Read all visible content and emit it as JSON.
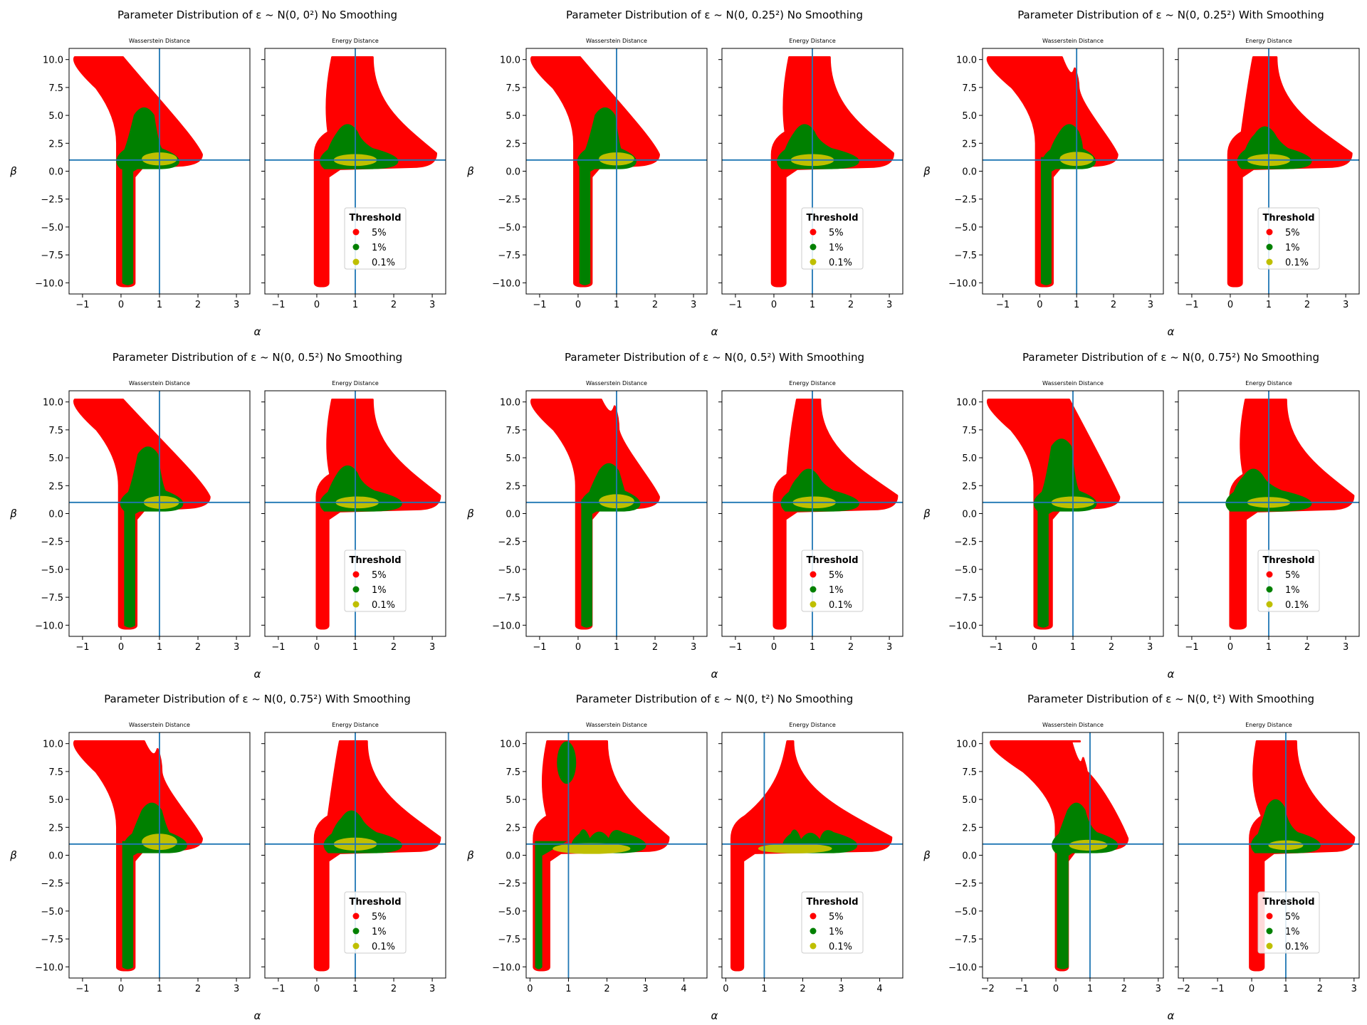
{
  "figure": {
    "legend": {
      "title": "Threshold",
      "entries": [
        {
          "label": "5%",
          "color": "#ff0000"
        },
        {
          "label": "1%",
          "color": "#008000"
        },
        {
          "label": "0.1%",
          "color": "#bfbf00"
        }
      ]
    },
    "colors": {
      "ref_line": "#1f77b4",
      "axes": "#000000"
    }
  },
  "chart_data": [
    {
      "type": "scatter",
      "title_main": "Parameter Distribution of ε ~ N(0, 0²) No Smoothing",
      "panels": [
        {
          "subtitle": "Wasserstein Distance",
          "shape": "L",
          "xlim": [
            -1.35,
            3.35
          ],
          "xticks": [
            -1,
            0,
            1,
            2,
            3
          ],
          "ref": {
            "x": 1,
            "y": 1
          },
          "red": {
            "tlx": -1.2,
            "trx": 0.05,
            "ty": 10.2,
            "b": 2.1,
            "stem": [
              -0.1,
              0.35
            ]
          },
          "green": {
            "peak": [
              0.6,
              6
            ],
            "r": 1.5,
            "stem": [
              0.05,
              0.3
            ]
          },
          "yellow": {
            "c": [
              1.0,
              1.1
            ],
            "rx": 0.45,
            "ry": 0.55
          }
        },
        {
          "subtitle": "Energy Distance",
          "shape": "E",
          "xlim": [
            -1.35,
            3.35
          ],
          "xticks": [
            -1,
            0,
            1,
            2,
            3
          ],
          "ref": {
            "x": 1,
            "y": 1
          },
          "red": {
            "tl": 0.4,
            "tr": 1.45,
            "r": 3.1,
            "stem": [
              -0.05,
              0.3
            ]
          },
          "green": {
            "peak": [
              0.8,
              4.5
            ],
            "r": 2.1
          },
          "yellow": {
            "c": [
              1.0,
              1.0
            ],
            "rx": 0.55,
            "ry": 0.5
          }
        }
      ]
    },
    {
      "type": "scatter",
      "title_main": "Parameter Distribution of ε ~ N(0, 0.25²) No Smoothing",
      "panels": [
        {
          "subtitle": "Wasserstein Distance",
          "shape": "L",
          "xlim": [
            -1.35,
            3.35
          ],
          "xticks": [
            -1,
            0,
            1,
            2,
            3
          ],
          "ref": {
            "x": 1,
            "y": 1
          },
          "red": {
            "tlx": -1.2,
            "trx": 0.05,
            "ty": 10.2,
            "b": 2.1,
            "stem": [
              -0.1,
              0.35
            ]
          },
          "green": {
            "peak": [
              0.7,
              6
            ],
            "r": 1.5,
            "stem": [
              0.05,
              0.3
            ]
          },
          "yellow": {
            "c": [
              1.0,
              1.1
            ],
            "rx": 0.45,
            "ry": 0.55
          }
        },
        {
          "subtitle": "Energy Distance",
          "shape": "E",
          "xlim": [
            -1.35,
            3.35
          ],
          "xticks": [
            -1,
            0,
            1,
            2,
            3
          ],
          "ref": {
            "x": 1,
            "y": 1
          },
          "red": {
            "tl": 0.4,
            "tr": 1.45,
            "r": 3.1,
            "stem": [
              -0.05,
              0.3
            ]
          },
          "green": {
            "peak": [
              0.8,
              4.5
            ],
            "r": 2.2
          },
          "yellow": {
            "c": [
              1.0,
              1.0
            ],
            "rx": 0.55,
            "ry": 0.5
          }
        }
      ]
    },
    {
      "type": "scatter",
      "title_main": "Parameter Distribution of ε ~ N(0, 0.25²) With Smoothing",
      "panels": [
        {
          "subtitle": "Wasserstein Distance",
          "shape": "L",
          "xlim": [
            -1.55,
            3.35
          ],
          "xticks": [
            -1,
            0,
            1,
            2,
            3
          ],
          "ref": {
            "x": 1,
            "y": 1
          },
          "red": {
            "tlx": -1.4,
            "trx": 0.05,
            "ty": 10.2,
            "b": 2.1,
            "stem": [
              -0.1,
              0.35
            ],
            "bump": [
              0.95,
              9.2
            ]
          },
          "green": {
            "peak": [
              0.8,
              4.5
            ],
            "r": 1.5,
            "stem": [
              0.05,
              0.3
            ]
          },
          "yellow": {
            "c": [
              1.0,
              1.1
            ],
            "rx": 0.45,
            "ry": 0.6
          }
        },
        {
          "subtitle": "Energy Distance",
          "shape": "E",
          "xlim": [
            -1.35,
            3.35
          ],
          "xticks": [
            -1,
            0,
            1,
            2,
            3
          ],
          "ref": {
            "x": 1,
            "y": 1
          },
          "red": {
            "tl": 0.6,
            "tr": 1.2,
            "r": 3.15,
            "stem": [
              -0.05,
              0.3
            ]
          },
          "green": {
            "peak": [
              0.9,
              4.3
            ],
            "r": 2.1
          },
          "yellow": {
            "c": [
              1.0,
              1.0
            ],
            "rx": 0.55,
            "ry": 0.5
          }
        }
      ]
    },
    {
      "type": "scatter",
      "title_main": "Parameter Distribution of ε ~ N(0, 0.5²) No Smoothing",
      "panels": [
        {
          "subtitle": "Wasserstein Distance",
          "shape": "L",
          "xlim": [
            -1.35,
            3.35
          ],
          "xticks": [
            -1,
            0,
            1,
            2,
            3
          ],
          "ref": {
            "x": 1,
            "y": 1
          },
          "red": {
            "tlx": -1.2,
            "trx": 0.05,
            "ty": 10.2,
            "b": 2.3,
            "stem": [
              -0.05,
              0.4
            ]
          },
          "green": {
            "peak": [
              0.7,
              6.3
            ],
            "r": 1.6,
            "stem": [
              0.1,
              0.35
            ]
          },
          "yellow": {
            "c": [
              1.05,
              1.0
            ],
            "rx": 0.45,
            "ry": 0.55
          }
        },
        {
          "subtitle": "Energy Distance",
          "shape": "E",
          "xlim": [
            -1.35,
            3.35
          ],
          "xticks": [
            -1,
            0,
            1,
            2,
            3
          ],
          "ref": {
            "x": 1,
            "y": 1
          },
          "red": {
            "tl": 0.4,
            "tr": 1.45,
            "r": 3.2,
            "stem": [
              0.0,
              0.3
            ]
          },
          "green": {
            "peak": [
              0.8,
              4.6
            ],
            "r": 2.2
          },
          "yellow": {
            "c": [
              1.05,
              1.0
            ],
            "rx": 0.55,
            "ry": 0.5
          }
        }
      ]
    },
    {
      "type": "scatter",
      "title_main": "Parameter Distribution of ε ~ N(0, 0.5²) With Smoothing",
      "panels": [
        {
          "subtitle": "Wasserstein Distance",
          "shape": "L",
          "xlim": [
            -1.35,
            3.35
          ],
          "xticks": [
            -1,
            0,
            1,
            2,
            3
          ],
          "ref": {
            "x": 1,
            "y": 1
          },
          "red": {
            "tlx": -1.2,
            "trx": 0.2,
            "ty": 10.2,
            "b": 2.1,
            "stem": [
              -0.05,
              0.35
            ],
            "bump": [
              0.95,
              9.6
            ]
          },
          "green": {
            "peak": [
              0.8,
              4.8
            ],
            "r": 1.6,
            "stem": [
              0.1,
              0.35
            ]
          },
          "yellow": {
            "c": [
              1.0,
              1.1
            ],
            "rx": 0.45,
            "ry": 0.6
          }
        },
        {
          "subtitle": "Energy Distance",
          "shape": "E",
          "xlim": [
            -1.35,
            3.35
          ],
          "xticks": [
            -1,
            0,
            1,
            2,
            3
          ],
          "ref": {
            "x": 1,
            "y": 1
          },
          "red": {
            "tl": 0.6,
            "tr": 1.2,
            "r": 3.2,
            "stem": [
              0.0,
              0.3
            ]
          },
          "green": {
            "peak": [
              0.9,
              4.3
            ],
            "r": 2.2
          },
          "yellow": {
            "c": [
              1.05,
              1.0
            ],
            "rx": 0.55,
            "ry": 0.5
          }
        }
      ]
    },
    {
      "type": "scatter",
      "title_main": "Parameter Distribution of ε ~ N(0, 0.75²) No Smoothing",
      "panels": [
        {
          "subtitle": "Wasserstein Distance",
          "shape": "L",
          "xlim": [
            -1.35,
            3.35
          ],
          "xticks": [
            -1,
            0,
            1,
            2,
            3
          ],
          "ref": {
            "x": 1,
            "y": 1
          },
          "red": {
            "tlx": -1.2,
            "trx": 0.9,
            "ty": 10.2,
            "b": 2.2,
            "stem": [
              0.0,
              0.45
            ]
          },
          "green": {
            "peak": [
              0.7,
              7
            ],
            "r": 1.6,
            "stem": [
              0.1,
              0.35
            ]
          },
          "yellow": {
            "c": [
              1.0,
              1.0
            ],
            "rx": 0.55,
            "ry": 0.5
          }
        },
        {
          "subtitle": "Energy Distance",
          "shape": "E",
          "xlim": [
            -1.35,
            3.35
          ],
          "xticks": [
            -1,
            0,
            1,
            2,
            3
          ],
          "ref": {
            "x": 1,
            "y": 1
          },
          "red": {
            "tl": 0.4,
            "tr": 1.45,
            "r": 3.2,
            "stem": [
              0.0,
              0.4
            ]
          },
          "green": {
            "peak": [
              0.6,
              4.3
            ],
            "r": 2.1
          },
          "yellow": {
            "c": [
              1.0,
              1.0
            ],
            "rx": 0.55,
            "ry": 0.45
          }
        }
      ]
    },
    {
      "type": "scatter",
      "title_main": "Parameter Distribution of ε ~ N(0, 0.75²) With Smoothing",
      "panels": [
        {
          "subtitle": "Wasserstein Distance",
          "shape": "L",
          "xlim": [
            -1.35,
            3.35
          ],
          "xticks": [
            -1,
            0,
            1,
            2,
            3
          ],
          "ref": {
            "x": 1,
            "y": 1
          },
          "red": {
            "tlx": -1.2,
            "trx": 0.05,
            "ty": 10.2,
            "b": 2.1,
            "stem": [
              -0.1,
              0.35
            ],
            "bump": [
              0.95,
              9.5
            ]
          },
          "green": {
            "peak": [
              0.8,
              5
            ],
            "r": 1.7,
            "stem": [
              0.05,
              0.3
            ]
          },
          "yellow": {
            "c": [
              1.0,
              1.2
            ],
            "rx": 0.45,
            "ry": 0.7
          }
        },
        {
          "subtitle": "Energy Distance",
          "shape": "E",
          "xlim": [
            -1.35,
            3.35
          ],
          "xticks": [
            -1,
            0,
            1,
            2,
            3
          ],
          "ref": {
            "x": 1,
            "y": 1
          },
          "red": {
            "tl": 0.6,
            "tr": 1.3,
            "r": 3.2,
            "stem": [
              -0.05,
              0.3
            ]
          },
          "green": {
            "peak": [
              0.9,
              4.3
            ],
            "r": 2.2
          },
          "yellow": {
            "c": [
              1.0,
              1.0
            ],
            "rx": 0.55,
            "ry": 0.55
          }
        }
      ]
    },
    {
      "type": "scatter",
      "title_main": "Parameter Distribution of ε ~ N(0, t²) No Smoothing",
      "panels": [
        {
          "subtitle": "Wasserstein Distance",
          "shape": "T",
          "xlim": [
            -0.1,
            4.6
          ],
          "xticks": [
            0,
            1,
            2,
            3,
            4
          ],
          "ref": {
            "x": 1,
            "y": 1
          },
          "red": {
            "tl": 0.45,
            "tr": 2.0,
            "r": 3.6,
            "stem": [
              0.1,
              0.5
            ]
          },
          "green": {
            "blob": [
              0.95,
              8.3
            ],
            "peak": [
              1.8,
              2.4
            ],
            "r": 3.0,
            "stem": [
              0.15,
              0.3
            ]
          },
          "yellow": {
            "c": [
              1.6,
              0.6
            ],
            "rx": 1.0,
            "ry": 0.45
          }
        },
        {
          "subtitle": "Energy Distance",
          "shape": "T",
          "xlim": [
            -0.1,
            4.6
          ],
          "xticks": [
            0,
            1,
            2,
            3,
            4
          ],
          "ref": {
            "x": 1,
            "y": 1
          },
          "red": {
            "tl": 1.6,
            "tr": 1.75,
            "r": 4.3,
            "stem": [
              0.15,
              0.45
            ]
          },
          "green": {
            "peak": [
              2.2,
              2.3
            ],
            "r": 3.4,
            "stem": [
              0.0,
              0.0
            ]
          },
          "yellow": {
            "c": [
              1.8,
              0.6
            ],
            "rx": 0.95,
            "ry": 0.4
          }
        }
      ]
    },
    {
      "type": "scatter",
      "title_main": "Parameter Distribution of ε ~ N(0, t²) With Smoothing",
      "panels": [
        {
          "subtitle": "Wasserstein Distance",
          "shape": "L",
          "xlim": [
            -2.15,
            3.15
          ],
          "xticks": [
            -2,
            -1,
            0,
            1,
            2,
            3
          ],
          "ref": {
            "x": 1,
            "y": 1
          },
          "red": {
            "tlx": -1.9,
            "trx": 0.7,
            "ty": 10.2,
            "b": 2.1,
            "stem": [
              0.0,
              0.35
            ],
            "bump": [
              0.8,
              8.7
            ]
          },
          "green": {
            "peak": [
              0.6,
              5
            ],
            "r": 1.8,
            "stem": [
              0.05,
              0.35
            ]
          },
          "yellow": {
            "c": [
              0.95,
              0.9
            ],
            "rx": 0.55,
            "ry": 0.45
          }
        },
        {
          "subtitle": "Energy Distance",
          "shape": "E",
          "xlim": [
            -2.15,
            3.15
          ],
          "xticks": [
            -2,
            -1,
            0,
            1,
            2,
            3
          ],
          "ref": {
            "x": 1,
            "y": 1
          },
          "red": {
            "tl": 0.15,
            "tr": 1.3,
            "r": 3.0,
            "stem": [
              -0.05,
              0.35
            ]
          },
          "green": {
            "peak": [
              0.7,
              5.3
            ],
            "r": 2.0
          },
          "yellow": {
            "c": [
              1.0,
              0.9
            ],
            "rx": 0.5,
            "ry": 0.4
          }
        }
      ]
    }
  ]
}
